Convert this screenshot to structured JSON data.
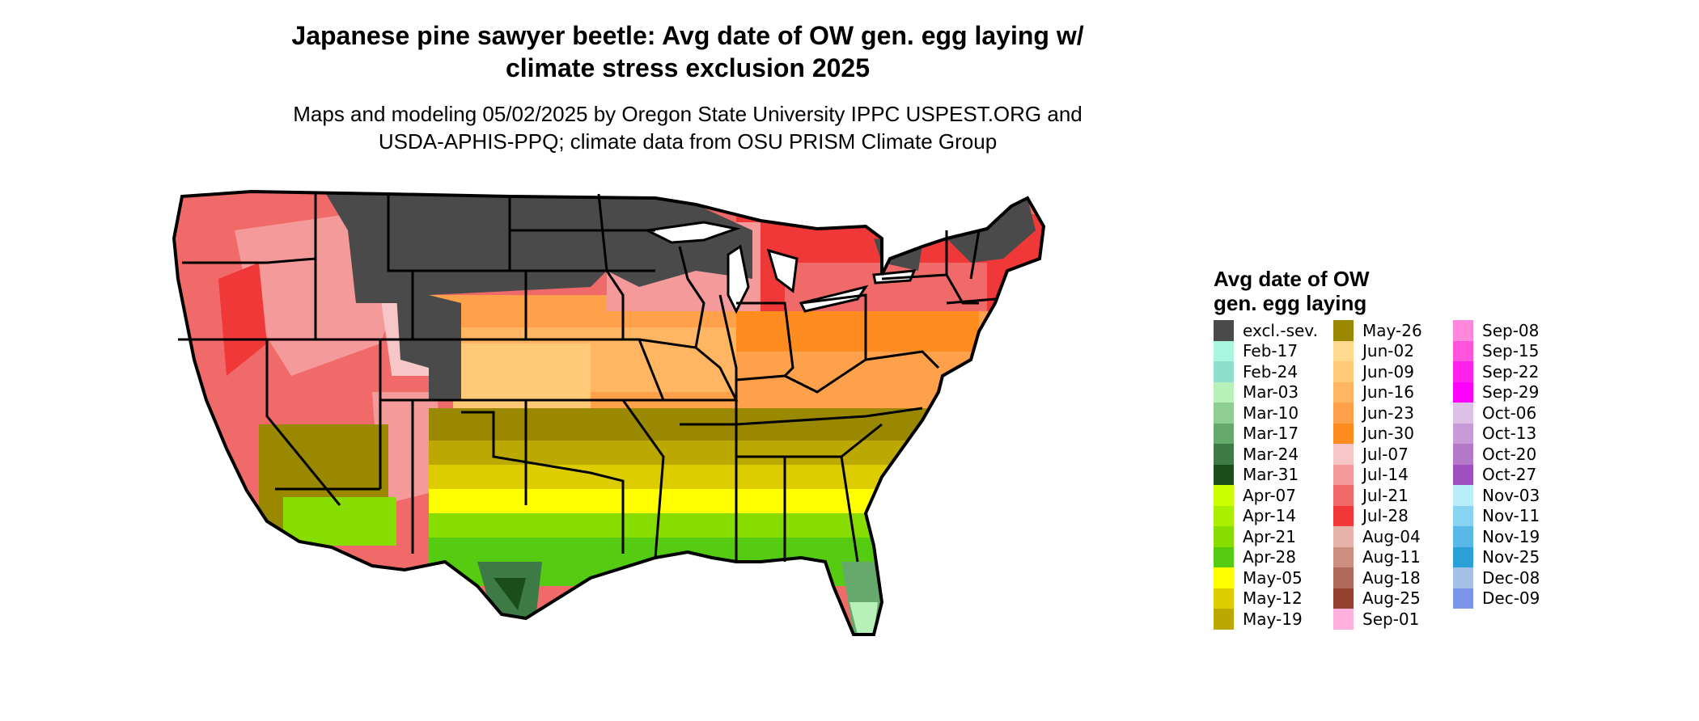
{
  "title_line1": "Japanese pine sawyer beetle: Avg date of OW gen. egg laying w/",
  "title_line2": "climate stress exclusion 2025",
  "subtitle_line1": "Maps and modeling 05/02/2025 by Oregon State University IPPC USPEST.ORG and",
  "subtitle_line2": "USDA-APHIS-PPQ; climate data from OSU PRISM Climate Group",
  "legend": {
    "title_line1": "Avg date of OW",
    "title_line2": "gen. egg laying",
    "columns": [
      [
        {
          "label": "excl.-sev.",
          "color": "#4a4a4a"
        },
        {
          "label": "Feb-17",
          "color": "#a8f5e0"
        },
        {
          "label": "Feb-24",
          "color": "#8ee0cc"
        },
        {
          "label": "Mar-03",
          "color": "#b7f0b8"
        },
        {
          "label": "Mar-10",
          "color": "#8fce93"
        },
        {
          "label": "Mar-17",
          "color": "#66a96c"
        },
        {
          "label": "Mar-24",
          "color": "#3d7a45"
        },
        {
          "label": "Mar-31",
          "color": "#1a4d1a"
        },
        {
          "label": "Apr-07",
          "color": "#ccff00"
        },
        {
          "label": "Apr-14",
          "color": "#aaee00"
        },
        {
          "label": "Apr-21",
          "color": "#88dd00"
        },
        {
          "label": "Apr-28",
          "color": "#55cc11"
        },
        {
          "label": "May-05",
          "color": "#ffff00"
        },
        {
          "label": "May-12",
          "color": "#ddcc00"
        },
        {
          "label": "May-19",
          "color": "#bba800"
        }
      ],
      [
        {
          "label": "May-26",
          "color": "#998800"
        },
        {
          "label": "Jun-02",
          "color": "#ffd98e"
        },
        {
          "label": "Jun-09",
          "color": "#ffc978"
        },
        {
          "label": "Jun-16",
          "color": "#ffb562"
        },
        {
          "label": "Jun-23",
          "color": "#ffa04a"
        },
        {
          "label": "Jun-30",
          "color": "#ff8c1f"
        },
        {
          "label": "Jul-07",
          "color": "#f7c6c6"
        },
        {
          "label": "Jul-14",
          "color": "#f59a9a"
        },
        {
          "label": "Jul-21",
          "color": "#f06a6a"
        },
        {
          "label": "Jul-28",
          "color": "#f03838"
        },
        {
          "label": "Aug-04",
          "color": "#e6b3aa"
        },
        {
          "label": "Aug-11",
          "color": "#cc8e80"
        },
        {
          "label": "Aug-18",
          "color": "#b06a5c"
        },
        {
          "label": "Aug-25",
          "color": "#94402e"
        },
        {
          "label": "Sep-01",
          "color": "#ffb0dc"
        }
      ],
      [
        {
          "label": "Sep-08",
          "color": "#ff88dd"
        },
        {
          "label": "Sep-15",
          "color": "#ff55dd"
        },
        {
          "label": "Sep-22",
          "color": "#ff22ee"
        },
        {
          "label": "Sep-29",
          "color": "#ff00ff"
        },
        {
          "label": "Oct-06",
          "color": "#dcc0e6"
        },
        {
          "label": "Oct-13",
          "color": "#c89bd8"
        },
        {
          "label": "Oct-20",
          "color": "#b479c8"
        },
        {
          "label": "Oct-27",
          "color": "#a04fbf"
        },
        {
          "label": "Nov-03",
          "color": "#b8ecfb"
        },
        {
          "label": "Nov-11",
          "color": "#88d4f0"
        },
        {
          "label": "Nov-19",
          "color": "#58b8e6"
        },
        {
          "label": "Nov-25",
          "color": "#2aa0d6"
        },
        {
          "label": "Dec-08",
          "color": "#a4c0e6"
        },
        {
          "label": "Dec-09",
          "color": "#7a95ea"
        }
      ]
    ]
  }
}
